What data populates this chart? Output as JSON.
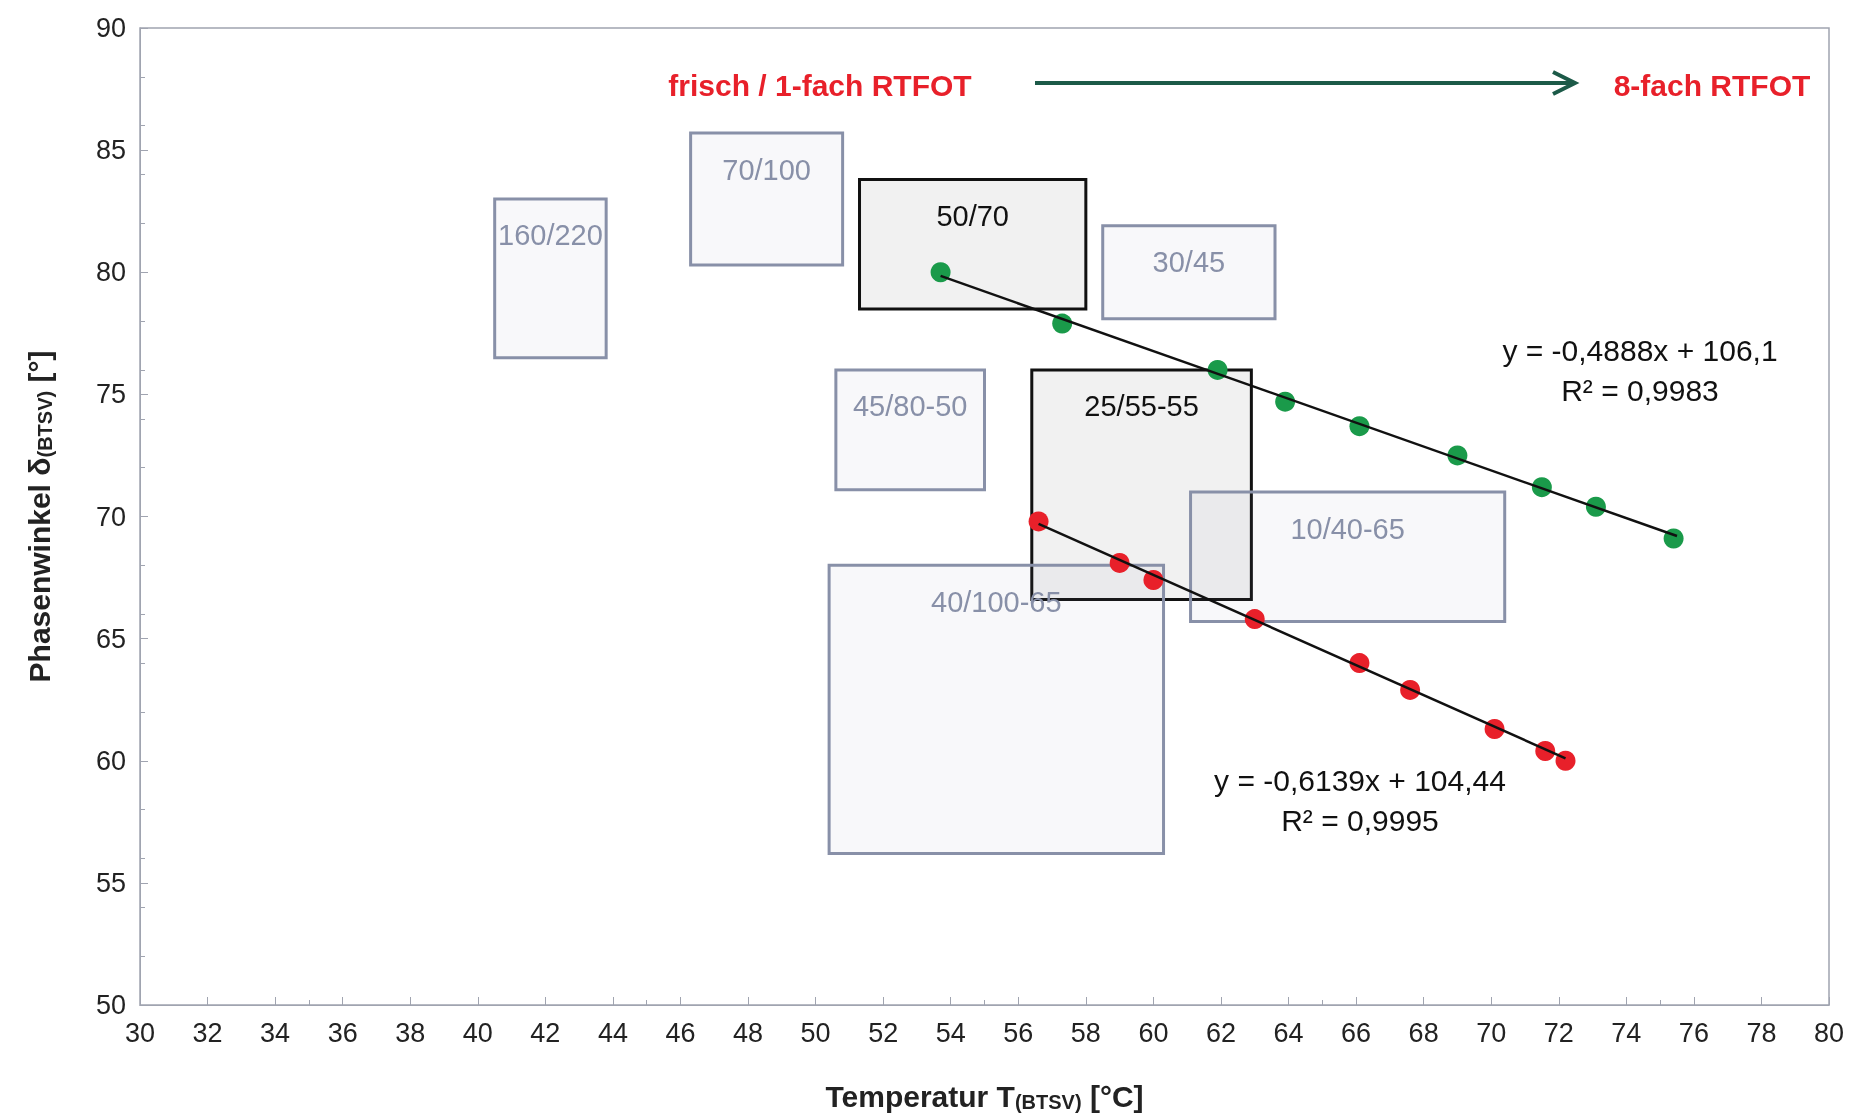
{
  "chart_data": {
    "type": "scatter",
    "xlabel": "Temperatur T$_{(BTSV)}$ [°C]",
    "ylabel": "Phasenwinkel δ$_{(BTSV)}$ [°]",
    "xlim": [
      30,
      80
    ],
    "xticks": [
      30,
      32,
      34,
      36,
      38,
      40,
      42,
      44,
      46,
      48,
      50,
      52,
      54,
      56,
      58,
      60,
      62,
      64,
      66,
      68,
      70,
      72,
      74,
      76,
      78,
      80
    ],
    "ylim": [
      50,
      90
    ],
    "yticks": [
      50,
      55,
      60,
      65,
      70,
      75,
      80,
      85,
      90
    ],
    "grid": false,
    "legend": false,
    "marker": "circle",
    "series": [
      {
        "type": "area",
        "name": "160/220",
        "color": "#8890a8",
        "x": [
          40.5,
          43.8
        ],
        "values": [
          null,
          null
        ],
        "lower": [
          76.5,
          76.5
        ],
        "upper": [
          83.0,
          83.0
        ]
      },
      {
        "type": "area",
        "name": "70/100",
        "color": "#8890a8",
        "x": [
          46.3,
          50.8
        ],
        "values": [
          null,
          null
        ],
        "lower": [
          80.3,
          80.3
        ],
        "upper": [
          85.7,
          85.7
        ]
      },
      {
        "type": "area",
        "name": "50/70",
        "color": "#111111",
        "x": [
          51.3,
          58.0
        ],
        "values": [
          null,
          null
        ],
        "lower": [
          78.5,
          78.5
        ],
        "upper": [
          83.8,
          83.8
        ]
      },
      {
        "type": "area",
        "name": "30/45",
        "color": "#8890a8",
        "x": [
          58.5,
          63.6
        ],
        "values": [
          null,
          null
        ],
        "lower": [
          78.1,
          78.1
        ],
        "upper": [
          81.9,
          81.9
        ]
      },
      {
        "type": "area",
        "name": "45/80-50",
        "color": "#8890a8",
        "x": [
          50.6,
          55.0
        ],
        "values": [
          null,
          null
        ],
        "lower": [
          71.1,
          71.1
        ],
        "upper": [
          76.0,
          76.0
        ]
      },
      {
        "type": "area",
        "name": "25/55-55",
        "color": "#111111",
        "x": [
          56.4,
          62.9
        ],
        "values": [
          null,
          null
        ],
        "lower": [
          66.6,
          66.6
        ],
        "upper": [
          76.0,
          76.0
        ]
      },
      {
        "type": "area",
        "name": "10/40-65",
        "color": "#8890a8",
        "x": [
          61.1,
          70.4
        ],
        "values": [
          null,
          null
        ],
        "lower": [
          65.7,
          65.7
        ],
        "upper": [
          71.0,
          71.0
        ]
      },
      {
        "type": "area",
        "name": "40/100-65",
        "color": "#8890a8",
        "x": [
          50.4,
          60.3
        ],
        "values": [
          null,
          null
        ],
        "lower": [
          56.2,
          56.2
        ],
        "upper": [
          68.0,
          68.0
        ]
      },
      {
        "type": "line",
        "marker": "none",
        "color": "#111111",
        "x": [
          53.7,
          75.5
        ],
        "values": [
          79.85,
          69.2
        ]
      },
      {
        "type": "line",
        "marker": "none",
        "color": "#111111",
        "x": [
          56.6,
          72.2
        ],
        "values": [
          69.7,
          60.1
        ]
      },
      {
        "color": "#1a9a4a",
        "x": [
          53.7,
          57.3,
          61.9,
          63.9,
          66.1,
          69.0,
          71.5,
          73.1,
          75.4
        ],
        "values": [
          80.0,
          77.9,
          76.0,
          74.7,
          73.7,
          72.5,
          71.2,
          70.4,
          69.1
        ]
      },
      {
        "color": "#e8202a",
        "x": [
          56.6,
          59.0,
          60.0,
          63.0,
          66.1,
          67.6,
          70.1,
          71.6,
          72.2
        ],
        "values": [
          69.8,
          68.1,
          67.4,
          65.8,
          64.0,
          62.9,
          61.3,
          60.4,
          60.0
        ]
      }
    ],
    "annotations": [
      "frisch / 1-fach RTFOT",
      "8-fach RTFOT",
      "y = -0,4888x + 106,1",
      "R² = 0,9983",
      "y = -0,6139x + 104,44",
      "R² = 0,9995"
    ]
  }
}
